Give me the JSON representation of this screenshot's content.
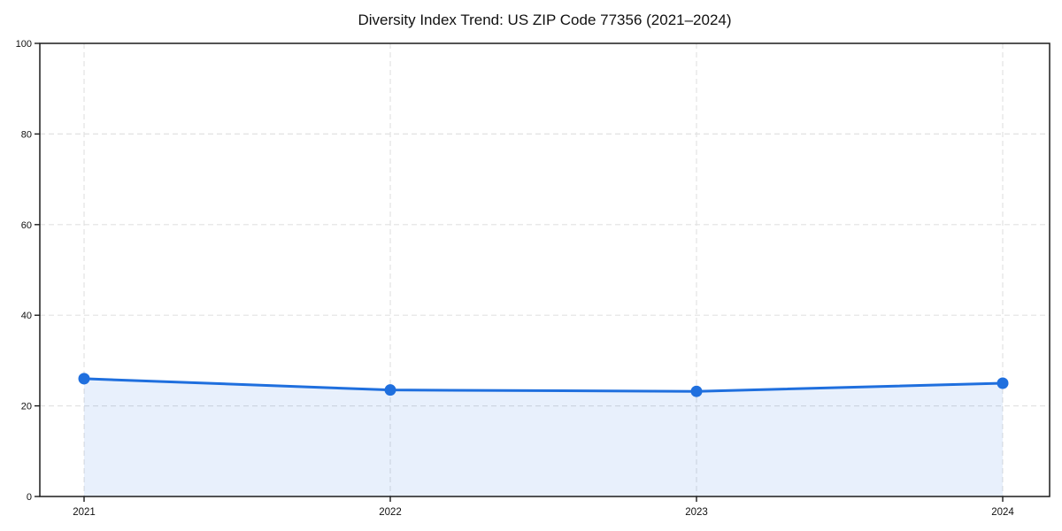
{
  "figure": {
    "title": "Diversity Index Trend: US ZIP Code 77356 (2021–2024)"
  },
  "chart_data": {
    "type": "area",
    "title": "Diversity Index Trend: US ZIP Code 77356 (2021–2024)",
    "categories": [
      "2021",
      "2022",
      "2023",
      "2024"
    ],
    "series": [
      {
        "name": "Diversity Index",
        "values": [
          26.0,
          23.5,
          23.2,
          25.0
        ]
      }
    ],
    "xlabel": "",
    "ylabel": "",
    "ylim": [
      0,
      100
    ],
    "yticks": [
      0,
      20,
      40,
      60,
      80,
      100
    ],
    "grid": true,
    "grid_style": "dashed",
    "legend": false,
    "marker": "circle",
    "colors": {
      "line": "#1f6fde",
      "marker": "#1f6fde",
      "fill": "rgba(31,111,222,0.10)",
      "grid": "#e2e2e2",
      "spine": "#1c1c1c",
      "tick_text": "#111111",
      "background": "#ffffff"
    }
  }
}
